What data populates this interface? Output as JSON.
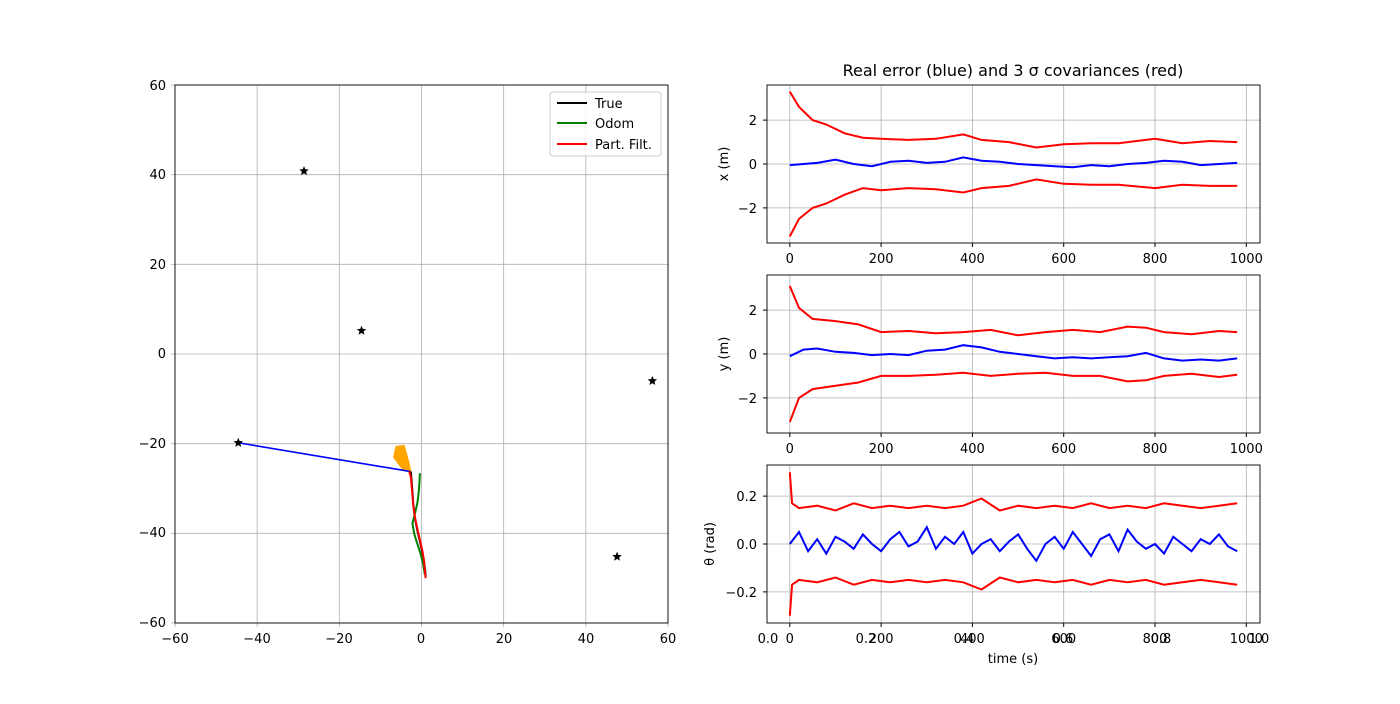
{
  "colors": {
    "true": "#000000",
    "odom": "#008000",
    "filter": "#ff0000",
    "blue": "#0000ff",
    "particles": "#ffa500",
    "grid": "#b0b0b0"
  },
  "chart_data": [
    {
      "type": "line",
      "xlim": [
        -60,
        60
      ],
      "ylim": [
        -60,
        60
      ],
      "xticks": [
        "−60",
        "−40",
        "−20",
        "0",
        "20",
        "40",
        "60"
      ],
      "yticks": [
        "60",
        "40",
        "20",
        "0",
        "−20",
        "−40",
        "−60"
      ],
      "grid": true,
      "legend_position": "top-right",
      "legend": [
        "True",
        "Odom",
        "Part. Filt."
      ],
      "landmarks": [
        [
          -28.6,
          40.8
        ],
        [
          -14.6,
          5.2
        ],
        [
          56.2,
          -6
        ],
        [
          -44.6,
          -19.8
        ],
        [
          47.6,
          -45.2
        ]
      ],
      "measurement_line": [
        [
          -44.6,
          -19.8
        ],
        [
          -2.8,
          -26.2
        ]
      ],
      "particle_cloud": [
        [
          -6.2,
          -20.6
        ],
        [
          -4.2,
          -20.4
        ],
        [
          -3.0,
          -24.4
        ],
        [
          -2.6,
          -26.2
        ],
        [
          -4.4,
          -26.0
        ],
        [
          -6.8,
          -23.0
        ]
      ],
      "series": [
        {
          "name": "True",
          "x": [
            -2.6,
            -2.4,
            -2.2,
            -2.0,
            -1.6,
            -1.0,
            -0.4,
            0.2,
            0.6,
            0.9,
            1.0
          ],
          "y": [
            -26.2,
            -28.4,
            -30.8,
            -33.6,
            -36.6,
            -39.4,
            -41.8,
            -44.2,
            -46.2,
            -48.2,
            -49.6
          ]
        },
        {
          "name": "Odom",
          "x": [
            -0.4,
            -0.5,
            -0.7,
            -1.0,
            -1.6,
            -2.2,
            -1.8,
            -1.0,
            -0.2,
            0.4,
            0.8
          ],
          "y": [
            -26.6,
            -28.8,
            -31.0,
            -33.2,
            -35.6,
            -37.8,
            -40.0,
            -42.4,
            -44.6,
            -46.8,
            -49.2
          ]
        },
        {
          "name": "Part. Filt.",
          "x": [
            -3.0,
            -2.6,
            -2.4,
            -2.2,
            -2.0,
            -1.6,
            -1.0,
            -0.4,
            0.2,
            0.6,
            0.8,
            1.0
          ],
          "y": [
            -26.2,
            -27.4,
            -29.4,
            -31.6,
            -33.8,
            -36.4,
            -39.0,
            -41.4,
            -43.8,
            -46.0,
            -48.0,
            -50.0
          ]
        }
      ]
    },
    {
      "type": "line",
      "title": "Real error (blue) and 3 σ covariances (red)",
      "ylabel": "x (m)",
      "xlim": [
        -50,
        1030
      ],
      "ylim": [
        -3.6,
        3.6
      ],
      "xticks": [
        "0",
        "200",
        "400",
        "600",
        "800",
        "1000"
      ],
      "yticks": [
        "2",
        "0",
        "−2"
      ],
      "grid": true,
      "series": [
        {
          "color": "red",
          "x": [
            0,
            20,
            50,
            80,
            120,
            160,
            200,
            260,
            320,
            380,
            420,
            480,
            540,
            600,
            660,
            720,
            800,
            860,
            920,
            980
          ],
          "y": [
            3.3,
            2.6,
            2.0,
            1.8,
            1.4,
            1.2,
            1.15,
            1.1,
            1.15,
            1.35,
            1.1,
            1.0,
            0.75,
            0.9,
            0.95,
            0.95,
            1.15,
            0.95,
            1.05,
            1.0
          ]
        },
        {
          "color": "red",
          "x": [
            0,
            20,
            50,
            80,
            120,
            160,
            200,
            260,
            320,
            380,
            420,
            480,
            540,
            600,
            660,
            720,
            800,
            860,
            920,
            980
          ],
          "y": [
            -3.3,
            -2.5,
            -2.0,
            -1.8,
            -1.4,
            -1.1,
            -1.2,
            -1.1,
            -1.15,
            -1.3,
            -1.1,
            -1.0,
            -0.7,
            -0.9,
            -0.95,
            -0.95,
            -1.1,
            -0.95,
            -1.0,
            -1.0
          ]
        },
        {
          "color": "blue",
          "x": [
            0,
            30,
            60,
            100,
            140,
            180,
            220,
            260,
            300,
            340,
            380,
            420,
            460,
            500,
            540,
            580,
            620,
            660,
            700,
            740,
            780,
            820,
            860,
            900,
            940,
            980
          ],
          "y": [
            -0.05,
            0.0,
            0.05,
            0.2,
            0.0,
            -0.1,
            0.1,
            0.15,
            0.05,
            0.1,
            0.3,
            0.15,
            0.1,
            0.0,
            -0.05,
            -0.1,
            -0.15,
            -0.05,
            -0.1,
            0.0,
            0.05,
            0.15,
            0.1,
            -0.05,
            0.0,
            0.05
          ]
        }
      ]
    },
    {
      "type": "line",
      "ylabel": "y (m)",
      "xlim": [
        -50,
        1030
      ],
      "ylim": [
        -3.6,
        3.6
      ],
      "xticks": [
        "0",
        "200",
        "400",
        "600",
        "800",
        "1000"
      ],
      "yticks": [
        "2",
        "0",
        "−2"
      ],
      "grid": true,
      "series": [
        {
          "color": "red",
          "x": [
            0,
            20,
            50,
            100,
            150,
            200,
            260,
            320,
            380,
            440,
            500,
            560,
            620,
            680,
            740,
            780,
            820,
            880,
            940,
            980
          ],
          "y": [
            3.1,
            2.1,
            1.6,
            1.5,
            1.35,
            1.0,
            1.05,
            0.95,
            1.0,
            1.1,
            0.85,
            1.0,
            1.1,
            1.0,
            1.25,
            1.2,
            1.0,
            0.9,
            1.05,
            1.0
          ]
        },
        {
          "color": "red",
          "x": [
            0,
            20,
            50,
            100,
            150,
            200,
            260,
            320,
            380,
            440,
            500,
            560,
            620,
            680,
            740,
            780,
            820,
            880,
            940,
            980
          ],
          "y": [
            -3.1,
            -2.0,
            -1.6,
            -1.45,
            -1.3,
            -1.0,
            -1.0,
            -0.95,
            -0.85,
            -1.0,
            -0.9,
            -0.85,
            -1.0,
            -1.0,
            -1.25,
            -1.2,
            -1.0,
            -0.9,
            -1.05,
            -0.95
          ]
        },
        {
          "color": "blue",
          "x": [
            0,
            30,
            60,
            100,
            140,
            180,
            220,
            260,
            300,
            340,
            380,
            420,
            460,
            500,
            540,
            580,
            620,
            660,
            700,
            740,
            780,
            820,
            860,
            900,
            940,
            980
          ],
          "y": [
            -0.1,
            0.2,
            0.25,
            0.1,
            0.05,
            -0.05,
            0.0,
            -0.05,
            0.15,
            0.2,
            0.4,
            0.3,
            0.1,
            0.0,
            -0.1,
            -0.2,
            -0.15,
            -0.2,
            -0.15,
            -0.1,
            0.05,
            -0.2,
            -0.3,
            -0.25,
            -0.3,
            -0.2
          ]
        }
      ]
    },
    {
      "type": "line",
      "ylabel": "θ (rad)",
      "xlabel": "time (s)",
      "xlim": [
        -50,
        1030
      ],
      "ylim": [
        -0.33,
        0.33
      ],
      "xticks": [
        "0",
        "200",
        "400",
        "600",
        "800",
        "1000"
      ],
      "xticks_overlay": [
        "0.0",
        "0.2",
        "0.4",
        "0.6",
        "0.8",
        "1.0"
      ],
      "yticks": [
        "0.2",
        "0.0",
        "−0.2"
      ],
      "grid": true,
      "series": [
        {
          "color": "red",
          "x": [
            0,
            5,
            20,
            60,
            100,
            140,
            180,
            220,
            260,
            300,
            340,
            380,
            420,
            460,
            500,
            540,
            580,
            620,
            660,
            700,
            740,
            780,
            820,
            860,
            900,
            940,
            980
          ],
          "y": [
            0.3,
            0.17,
            0.15,
            0.16,
            0.14,
            0.17,
            0.15,
            0.16,
            0.15,
            0.16,
            0.15,
            0.16,
            0.19,
            0.14,
            0.16,
            0.15,
            0.16,
            0.15,
            0.17,
            0.15,
            0.16,
            0.15,
            0.17,
            0.16,
            0.15,
            0.16,
            0.17
          ]
        },
        {
          "color": "red",
          "x": [
            0,
            5,
            20,
            60,
            100,
            140,
            180,
            220,
            260,
            300,
            340,
            380,
            420,
            460,
            500,
            540,
            580,
            620,
            660,
            700,
            740,
            780,
            820,
            860,
            900,
            940,
            980
          ],
          "y": [
            -0.3,
            -0.17,
            -0.15,
            -0.16,
            -0.14,
            -0.17,
            -0.15,
            -0.16,
            -0.15,
            -0.16,
            -0.15,
            -0.16,
            -0.19,
            -0.14,
            -0.16,
            -0.15,
            -0.16,
            -0.15,
            -0.17,
            -0.15,
            -0.16,
            -0.15,
            -0.17,
            -0.16,
            -0.15,
            -0.16,
            -0.17
          ]
        },
        {
          "color": "blue",
          "x": [
            0,
            20,
            40,
            60,
            80,
            100,
            120,
            140,
            160,
            180,
            200,
            220,
            240,
            260,
            280,
            300,
            320,
            340,
            360,
            380,
            400,
            420,
            440,
            460,
            480,
            500,
            520,
            540,
            560,
            580,
            600,
            620,
            640,
            660,
            680,
            700,
            720,
            740,
            760,
            780,
            800,
            820,
            840,
            860,
            880,
            900,
            920,
            940,
            960,
            980
          ],
          "y": [
            0.0,
            0.05,
            -0.03,
            0.02,
            -0.04,
            0.03,
            0.01,
            -0.02,
            0.04,
            0.0,
            -0.03,
            0.02,
            0.05,
            -0.01,
            0.01,
            0.07,
            -0.02,
            0.03,
            0.0,
            0.05,
            -0.04,
            0.0,
            0.02,
            -0.03,
            0.01,
            0.04,
            -0.02,
            -0.07,
            0.0,
            0.03,
            -0.02,
            0.05,
            0.0,
            -0.05,
            0.02,
            0.04,
            -0.03,
            0.06,
            0.01,
            -0.02,
            0.0,
            -0.04,
            0.03,
            0.0,
            -0.03,
            0.02,
            0.0,
            0.04,
            -0.01,
            -0.03
          ]
        }
      ]
    }
  ]
}
